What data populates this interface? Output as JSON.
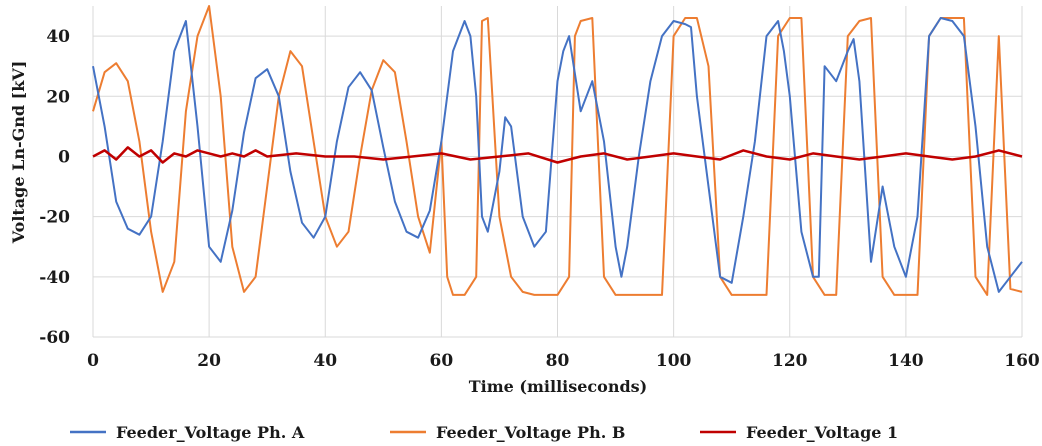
{
  "chart_data": {
    "type": "line",
    "xlabel": "Time (milliseconds)",
    "ylabel": "Voltage Ln-Gnd [kV]",
    "xlim": [
      0,
      160
    ],
    "ylim": [
      -60,
      50
    ],
    "xticks": [
      "0",
      "20",
      "40",
      "60",
      "80",
      "100",
      "120",
      "140",
      "160"
    ],
    "yticks": [
      "-60",
      "-40",
      "-20",
      "0",
      "20",
      "40"
    ],
    "grid": true,
    "legend_position": "bottom",
    "series": [
      {
        "name": "Feeder_Voltage Ph. A",
        "color": "#4472c4",
        "x": [
          0,
          2,
          4,
          6,
          8,
          10,
          12,
          14,
          16,
          18,
          20,
          22,
          24,
          26,
          28,
          30,
          32,
          34,
          36,
          38,
          40,
          42,
          44,
          46,
          48,
          50,
          52,
          54,
          56,
          58,
          60,
          62,
          64,
          65,
          66,
          67,
          68,
          70,
          71,
          72,
          74,
          76,
          78,
          80,
          81,
          82,
          84,
          86,
          88,
          90,
          91,
          92,
          94,
          96,
          98,
          100,
          102,
          103,
          104,
          106,
          108,
          110,
          112,
          114,
          116,
          118,
          119,
          120,
          122,
          124,
          125,
          126,
          128,
          130,
          131,
          132,
          134,
          136,
          138,
          140,
          142,
          144,
          146,
          148,
          150,
          152,
          154,
          156,
          158,
          160
        ],
        "y": [
          30,
          10,
          -15,
          -24,
          -26,
          -20,
          5,
          35,
          45,
          10,
          -30,
          -35,
          -18,
          8,
          26,
          29,
          20,
          -5,
          -22,
          -27,
          -20,
          5,
          23,
          28,
          22,
          3,
          -15,
          -25,
          -27,
          -18,
          5,
          35,
          45,
          40,
          20,
          -20,
          -25,
          -5,
          13,
          10,
          -20,
          -30,
          -25,
          25,
          35,
          40,
          15,
          25,
          5,
          -30,
          -40,
          -30,
          0,
          25,
          40,
          45,
          44,
          43,
          20,
          -10,
          -40,
          -42,
          -20,
          5,
          40,
          45,
          35,
          20,
          -25,
          -40,
          -40,
          30,
          25,
          35,
          39,
          25,
          -35,
          -10,
          -30,
          -40,
          -20,
          40,
          46,
          45,
          40,
          10,
          -30,
          -45,
          -40,
          -35
        ]
      },
      {
        "name": "Feeder_Voltage Ph. B",
        "color": "#ed7d31",
        "x": [
          0,
          2,
          4,
          6,
          8,
          10,
          12,
          14,
          16,
          18,
          20,
          22,
          24,
          26,
          28,
          30,
          32,
          34,
          36,
          38,
          40,
          42,
          44,
          46,
          48,
          50,
          52,
          54,
          56,
          58,
          60,
          61,
          62,
          64,
          66,
          67,
          68,
          70,
          72,
          74,
          76,
          78,
          80,
          82,
          83,
          84,
          86,
          88,
          90,
          92,
          94,
          96,
          98,
          100,
          102,
          104,
          106,
          108,
          110,
          112,
          114,
          116,
          118,
          120,
          122,
          124,
          126,
          128,
          130,
          132,
          134,
          136,
          138,
          140,
          142,
          144,
          146,
          148,
          150,
          152,
          154,
          156,
          158,
          160
        ],
        "y": [
          15,
          28,
          31,
          25,
          5,
          -25,
          -45,
          -35,
          15,
          40,
          50,
          20,
          -30,
          -45,
          -40,
          -10,
          20,
          35,
          30,
          5,
          -20,
          -30,
          -25,
          0,
          22,
          32,
          28,
          5,
          -20,
          -32,
          5,
          -40,
          -46,
          -46,
          -40,
          45,
          46,
          -20,
          -40,
          -45,
          -46,
          -46,
          -46,
          -40,
          40,
          45,
          46,
          -40,
          -46,
          -46,
          -46,
          -46,
          -46,
          40,
          46,
          46,
          30,
          -40,
          -46,
          -46,
          -46,
          -46,
          40,
          46,
          46,
          -40,
          -46,
          -46,
          40,
          45,
          46,
          -40,
          -46,
          -46,
          -46,
          40,
          46,
          46,
          46,
          -40,
          -46,
          40,
          -44,
          -45
        ]
      },
      {
        "name": "Feeder_Voltage 1",
        "color": "#c00000",
        "x": [
          0,
          2,
          4,
          6,
          8,
          10,
          12,
          14,
          16,
          18,
          20,
          22,
          24,
          26,
          28,
          30,
          35,
          40,
          45,
          50,
          55,
          60,
          65,
          70,
          75,
          80,
          84,
          88,
          92,
          96,
          100,
          104,
          108,
          112,
          116,
          120,
          124,
          128,
          132,
          136,
          140,
          144,
          148,
          152,
          156,
          160
        ],
        "y": [
          0,
          2,
          -1,
          3,
          0,
          2,
          -2,
          1,
          0,
          2,
          1,
          0,
          1,
          0,
          2,
          0,
          1,
          0,
          0,
          -1,
          0,
          1,
          -1,
          0,
          1,
          -2,
          0,
          1,
          -1,
          0,
          1,
          0,
          -1,
          2,
          0,
          -1,
          1,
          0,
          -1,
          0,
          1,
          0,
          -1,
          0,
          2,
          0
        ]
      }
    ]
  }
}
